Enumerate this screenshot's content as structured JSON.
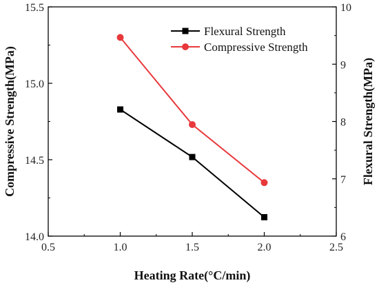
{
  "chart_data": {
    "type": "line",
    "x": [
      1.0,
      1.5,
      2.0
    ],
    "xlabel": "Heating Rate(°C/min)",
    "ylabel_left": "Compressive Strength(MPa)",
    "ylabel_right": "Flexural Strength(MPa)",
    "xlim": [
      0.5,
      2.5
    ],
    "ylim_left": [
      14.0,
      15.5
    ],
    "ylim_right": [
      6,
      10
    ],
    "x_ticks": [
      "0.5",
      "1.0",
      "1.5",
      "2.0",
      "2.5"
    ],
    "y_left_ticks": [
      "14.0",
      "14.5",
      "15.0",
      "15.5"
    ],
    "y_right_ticks": [
      "6",
      "7",
      "8",
      "9",
      "10"
    ],
    "series": [
      {
        "name": "Flexural Strength",
        "axis": "right",
        "values": [
          8.21,
          7.38,
          6.33
        ],
        "color": "#000000",
        "marker": "square"
      },
      {
        "name": "Compressive Strength",
        "axis": "left",
        "values": [
          15.3,
          14.73,
          14.35
        ],
        "color": "#e8383b",
        "marker": "circle"
      }
    ],
    "grid": false,
    "legend_position": "top-right"
  }
}
